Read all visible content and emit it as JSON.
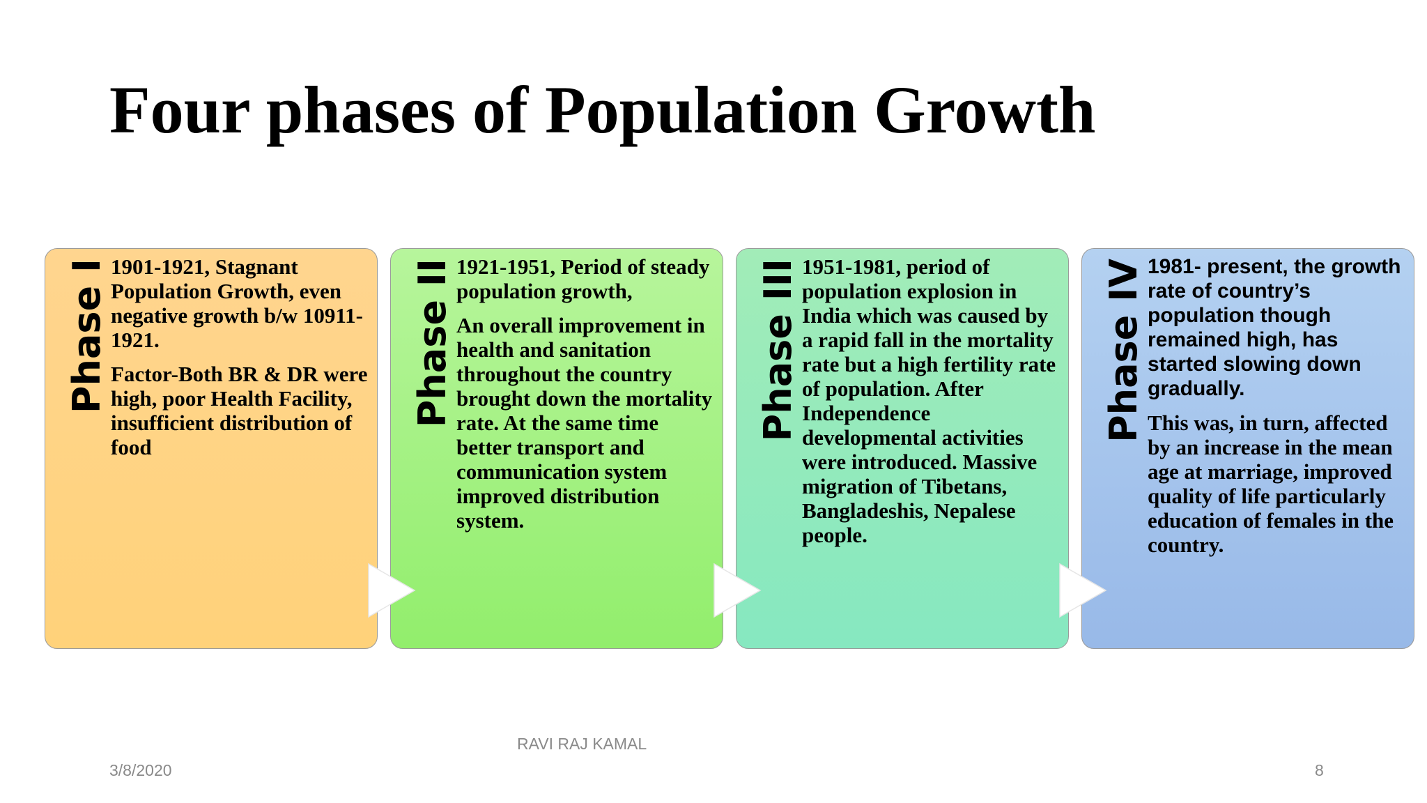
{
  "slide": {
    "title": "Four phases of Population Growth"
  },
  "phases": [
    {
      "label": "Phase I",
      "paragraphs": [
        "1901-1921, Stagnant Population Growth, even negative growth b/w 10911-1921.",
        "Factor-Both BR & DR were high, poor Health Facility, insufficient distribution of food"
      ],
      "gradient": [
        "#ffd58f",
        "#ffd27a"
      ]
    },
    {
      "label": "Phase II",
      "paragraphs": [
        "1921-1951, Period of steady population growth,",
        "An overall improvement in health and sanitation throughout the country brought down the mortality rate. At the same time better transport and communication system improved distribution system."
      ],
      "gradient": [
        "#b7f59c",
        "#92ee6c"
      ]
    },
    {
      "label": "Phase III",
      "paragraphs": [
        "1951-1981, period of population explosion in India which was caused by a rapid fall in the mortality rate but a high fertility rate of population. After Independence developmental activities were introduced. Massive migration of Tibetans, Bangladeshis, Nepalese people."
      ],
      "gradient": [
        "#a2ecb8",
        "#86e8c0"
      ]
    },
    {
      "label": "Phase IV",
      "paragraphs": [
        "1981- present, the growth rate of country’s population though remained high, has started slowing down gradually.",
        "This was, in turn, affected by an increase in the mean age at marriage, improved quality of life particularly education of females in the country."
      ],
      "gradient": [
        "#b4d1f1",
        "#98b9e8"
      ]
    }
  ],
  "footer": {
    "date": "3/8/2020",
    "author": "RAVI RAJ KAMAL",
    "page_number": "8"
  }
}
